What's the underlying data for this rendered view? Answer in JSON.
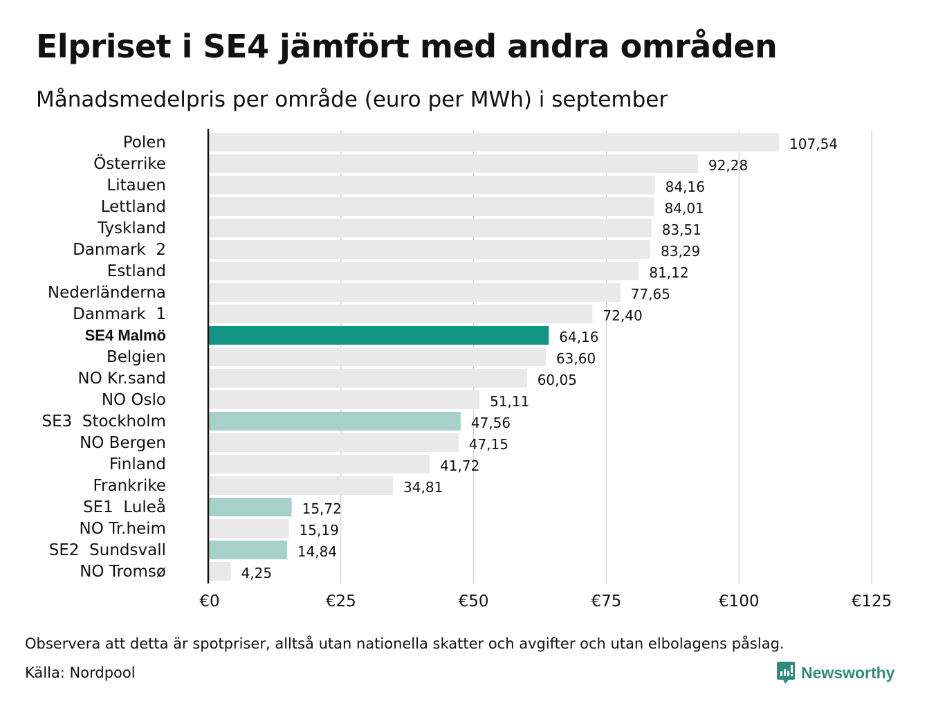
{
  "chart_data": {
    "type": "bar",
    "orientation": "horizontal",
    "title": "Elpriset i SE4 jämfört med andra områden",
    "subtitle": "Månadsmedelpris per område (euro per MWh) i september",
    "categories": [
      "Polen",
      "Österrike",
      "Litauen",
      "Lettland",
      "Tyskland",
      "Danmark  2",
      "Estland",
      "Nederländerna",
      "Danmark  1",
      "SE4 Malmö",
      "Belgien",
      "NO Kr.sand",
      "NO Oslo",
      "SE3  Stockholm",
      "NO Bergen",
      "Finland",
      "Frankrike",
      "SE1  Luleå",
      "NO Tr.heim",
      "SE2  Sundsvall",
      "NO Tromsø"
    ],
    "values": [
      107.54,
      92.28,
      84.16,
      84.01,
      83.51,
      83.29,
      81.12,
      77.65,
      72.4,
      64.16,
      63.6,
      60.05,
      51.11,
      47.56,
      47.15,
      41.72,
      34.81,
      15.72,
      15.19,
      14.84,
      4.25
    ],
    "value_labels": [
      "107,54",
      "92,28",
      "84,16",
      "84,01",
      "83,51",
      "83,29",
      "81,12",
      "77,65",
      "72,40",
      "64,16",
      "63,60",
      "60,05",
      "51,11",
      "47,56",
      "47,15",
      "41,72",
      "34,81",
      "15,72",
      "15,19",
      "14,84",
      "4,25"
    ],
    "highlight": [
      "none",
      "none",
      "none",
      "none",
      "none",
      "none",
      "none",
      "none",
      "none",
      "primary",
      "none",
      "none",
      "none",
      "secondary",
      "none",
      "none",
      "none",
      "secondary",
      "none",
      "secondary",
      "none"
    ],
    "xlim": [
      0,
      125
    ],
    "xticks": [
      0,
      25,
      50,
      75,
      100,
      125
    ],
    "xtick_labels": [
      "€0",
      "€25",
      "€50",
      "€75",
      "€100",
      "€125"
    ],
    "grid": true,
    "colors": {
      "default": "#e9e9e9",
      "primary": "#139586",
      "secondary": "#a6d0ca",
      "grid": "#c8c8d0"
    }
  },
  "footer": {
    "note": "Observera att detta är spotpriser, alltså utan nationella skatter och avgifter och utan elbolagens påslag.",
    "source": "Källa: Nordpool",
    "brand": "Newsworthy"
  }
}
